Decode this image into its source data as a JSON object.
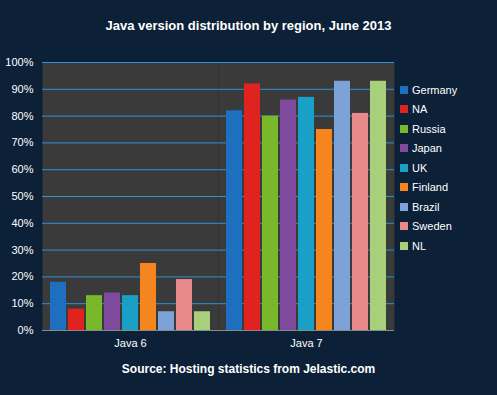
{
  "chart_data": {
    "type": "bar",
    "title": "Java version distribution by region, June 2013",
    "caption": "Source: Hosting statistics from Jelastic.com",
    "categories": [
      "Java 6",
      "Java 7"
    ],
    "series": [
      {
        "name": "Germany",
        "color": "#1f6fc0",
        "values": [
          18,
          82
        ]
      },
      {
        "name": "NA",
        "color": "#e0231f",
        "values": [
          8,
          92
        ]
      },
      {
        "name": "Russia",
        "color": "#78b82a",
        "values": [
          13,
          80
        ]
      },
      {
        "name": "Japan",
        "color": "#7d4a9e",
        "values": [
          14,
          86
        ]
      },
      {
        "name": "UK",
        "color": "#1aa0c6",
        "values": [
          13,
          87
        ]
      },
      {
        "name": "Finland",
        "color": "#f5861f",
        "values": [
          25,
          75
        ]
      },
      {
        "name": "Brazil",
        "color": "#7ca2d8",
        "values": [
          7,
          93
        ]
      },
      {
        "name": "Sweden",
        "color": "#e88a8a",
        "values": [
          19,
          81
        ]
      },
      {
        "name": "NL",
        "color": "#a8d07a",
        "values": [
          7,
          93
        ]
      }
    ],
    "ylim": [
      0,
      100
    ],
    "yticks": [
      {
        "value": 0,
        "label": "0%"
      },
      {
        "value": 10,
        "label": "10%"
      },
      {
        "value": 20,
        "label": "20%"
      },
      {
        "value": 30,
        "label": "30%"
      },
      {
        "value": 40,
        "label": "40%"
      },
      {
        "value": 50,
        "label": "50%"
      },
      {
        "value": 60,
        "label": "60%"
      },
      {
        "value": 70,
        "label": "70%"
      },
      {
        "value": 80,
        "label": "80%"
      },
      {
        "value": 90,
        "label": "90%"
      },
      {
        "value": 100,
        "label": "100%"
      }
    ],
    "grid": true,
    "legend": "right"
  }
}
